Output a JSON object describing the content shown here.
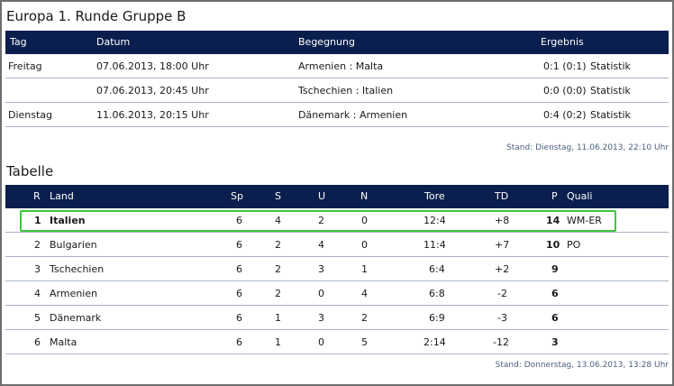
{
  "matches": {
    "title": "Europa 1. Runde Gruppe B",
    "headers": {
      "tag": "Tag",
      "datum": "Datum",
      "begegnung": "Begegnung",
      "ergebnis": "Ergebnis"
    },
    "rows": [
      {
        "tag": "Freitag",
        "datum": "07.06.2013, 18:00 Uhr",
        "begegnung": "Armenien : Malta",
        "ergebnis": "0:1 (0:1)",
        "link": "Statistik"
      },
      {
        "tag": "",
        "datum": "07.06.2013, 20:45 Uhr",
        "begegnung": "Tschechien : Italien",
        "ergebnis": "0:0 (0:0)",
        "link": "Statistik"
      },
      {
        "tag": "Dienstag",
        "datum": "11.06.2013, 20:15 Uhr",
        "begegnung": "Dänemark : Armenien",
        "ergebnis": "0:4 (0:2)",
        "link": "Statistik"
      }
    ],
    "stand": "Stand: Dienstag, 11.06.2013, 22:10 Uhr"
  },
  "table": {
    "title": "Tabelle",
    "headers": {
      "r": "R",
      "land": "Land",
      "sp": "Sp",
      "s": "S",
      "u": "U",
      "n": "N",
      "tore": "Tore",
      "td": "TD",
      "p": "P",
      "quali": "Quali"
    },
    "rows": [
      {
        "r": "1",
        "land": "Italien",
        "sp": "6",
        "s": "4",
        "u": "2",
        "n": "0",
        "tore": "12:4",
        "td": "+8",
        "p": "14",
        "quali": "WM-ER"
      },
      {
        "r": "2",
        "land": "Bulgarien",
        "sp": "6",
        "s": "2",
        "u": "4",
        "n": "0",
        "tore": "11:4",
        "td": "+7",
        "p": "10",
        "quali": "PO"
      },
      {
        "r": "3",
        "land": "Tschechien",
        "sp": "6",
        "s": "2",
        "u": "3",
        "n": "1",
        "tore": "6:4",
        "td": "+2",
        "p": "9",
        "quali": ""
      },
      {
        "r": "4",
        "land": "Armenien",
        "sp": "6",
        "s": "2",
        "u": "0",
        "n": "4",
        "tore": "6:8",
        "td": "-2",
        "p": "6",
        "quali": ""
      },
      {
        "r": "5",
        "land": "Dänemark",
        "sp": "6",
        "s": "1",
        "u": "3",
        "n": "2",
        "tore": "6:9",
        "td": "-3",
        "p": "6",
        "quali": ""
      },
      {
        "r": "6",
        "land": "Malta",
        "sp": "6",
        "s": "1",
        "u": "0",
        "n": "5",
        "tore": "2:14",
        "td": "-12",
        "p": "3",
        "quali": ""
      }
    ],
    "stand": "Stand: Donnerstag, 13.06.2013, 13:28 Uhr"
  },
  "colors": {
    "header_bg": "#0a1f4d",
    "highlight": "#3cc83c",
    "divider": "#a8b4c6"
  }
}
